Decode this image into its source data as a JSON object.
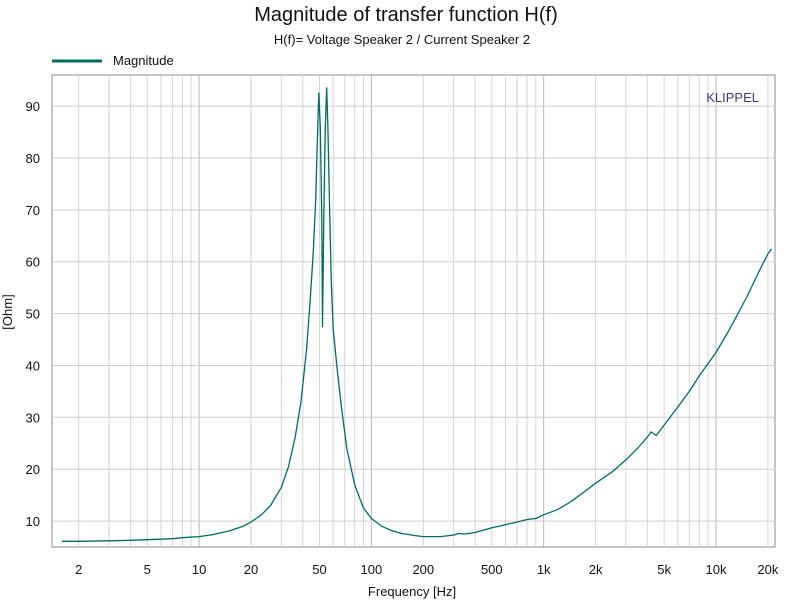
{
  "chart_data": {
    "type": "line",
    "title": "Magnitude of transfer function H(f)",
    "subtitle": "H(f)= Voltage Speaker 2 / Current Speaker 2",
    "xlabel": "Frequency [Hz]",
    "ylabel": "[Ohm]",
    "xscale": "log",
    "xlim": [
      1.4,
      22000
    ],
    "ylim": [
      5,
      96
    ],
    "x_ticks": [
      {
        "value": 2,
        "label": "2"
      },
      {
        "value": 5,
        "label": "5"
      },
      {
        "value": 10,
        "label": "10"
      },
      {
        "value": 20,
        "label": "20"
      },
      {
        "value": 50,
        "label": "50"
      },
      {
        "value": 100,
        "label": "100"
      },
      {
        "value": 200,
        "label": "200"
      },
      {
        "value": 500,
        "label": "500"
      },
      {
        "value": 1000,
        "label": "1k"
      },
      {
        "value": 2000,
        "label": "2k"
      },
      {
        "value": 5000,
        "label": "5k"
      },
      {
        "value": 10000,
        "label": "10k"
      },
      {
        "value": 20000,
        "label": "20k"
      }
    ],
    "y_ticks": [
      {
        "value": 10,
        "label": "10"
      },
      {
        "value": 20,
        "label": "20"
      },
      {
        "value": 30,
        "label": "30"
      },
      {
        "value": 40,
        "label": "40"
      },
      {
        "value": 50,
        "label": "50"
      },
      {
        "value": 60,
        "label": "60"
      },
      {
        "value": 70,
        "label": "70"
      },
      {
        "value": 80,
        "label": "80"
      },
      {
        "value": 90,
        "label": "90"
      }
    ],
    "grid": true,
    "legend": {
      "position": "top-left",
      "entries": [
        "Magnitude"
      ]
    },
    "watermark": "KLIPPEL",
    "series": [
      {
        "name": "Magnitude",
        "color": "#006d5b",
        "points": [
          [
            1.6,
            6.1
          ],
          [
            2,
            6.1
          ],
          [
            3,
            6.2
          ],
          [
            4,
            6.3
          ],
          [
            5,
            6.4
          ],
          [
            6,
            6.5
          ],
          [
            7,
            6.6
          ],
          [
            8,
            6.8
          ],
          [
            10,
            7.0
          ],
          [
            12,
            7.4
          ],
          [
            15,
            8.1
          ],
          [
            18,
            9.0
          ],
          [
            20,
            9.8
          ],
          [
            23,
            11.2
          ],
          [
            26,
            13.0
          ],
          [
            30,
            16.5
          ],
          [
            33,
            20.5
          ],
          [
            36,
            26.0
          ],
          [
            39,
            33.0
          ],
          [
            42,
            43.0
          ],
          [
            44,
            52.0
          ],
          [
            46,
            62.0
          ],
          [
            47.5,
            72.0
          ],
          [
            48.5,
            83.0
          ],
          [
            49.5,
            92.5
          ],
          [
            50.5,
            86.0
          ],
          [
            51.5,
            68.0
          ],
          [
            52,
            47.5
          ],
          [
            53,
            70.0
          ],
          [
            54,
            86.0
          ],
          [
            55,
            93.5
          ],
          [
            56,
            85.0
          ],
          [
            57,
            72.0
          ],
          [
            58.5,
            56.0
          ],
          [
            60,
            47.0
          ],
          [
            63,
            40.0
          ],
          [
            67,
            32.0
          ],
          [
            72,
            24.0
          ],
          [
            80,
            17.0
          ],
          [
            90,
            12.5
          ],
          [
            100,
            10.5
          ],
          [
            115,
            9.0
          ],
          [
            130,
            8.2
          ],
          [
            150,
            7.6
          ],
          [
            180,
            7.2
          ],
          [
            200,
            7.0
          ],
          [
            250,
            7.0
          ],
          [
            300,
            7.3
          ],
          [
            320,
            7.6
          ],
          [
            350,
            7.5
          ],
          [
            400,
            7.8
          ],
          [
            500,
            8.7
          ],
          [
            600,
            9.3
          ],
          [
            700,
            9.8
          ],
          [
            800,
            10.3
          ],
          [
            900,
            10.5
          ],
          [
            1000,
            11.2
          ],
          [
            1200,
            12.2
          ],
          [
            1400,
            13.5
          ],
          [
            1500,
            14.2
          ],
          [
            1700,
            15.5
          ],
          [
            2000,
            17.3
          ],
          [
            2500,
            19.5
          ],
          [
            3000,
            21.8
          ],
          [
            3500,
            24.0
          ],
          [
            4000,
            26.2
          ],
          [
            4200,
            27.2
          ],
          [
            4500,
            26.5
          ],
          [
            5000,
            28.5
          ],
          [
            6000,
            32.0
          ],
          [
            7000,
            35.0
          ],
          [
            8000,
            38.0
          ],
          [
            10000,
            42.5
          ],
          [
            12000,
            47.0
          ],
          [
            15000,
            53.0
          ],
          [
            18000,
            58.5
          ],
          [
            20000,
            61.5
          ],
          [
            21000,
            62.5
          ]
        ]
      }
    ]
  }
}
